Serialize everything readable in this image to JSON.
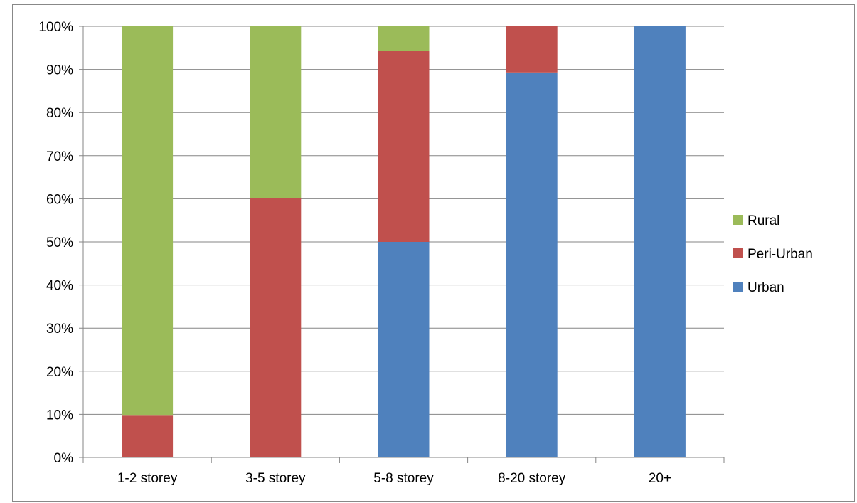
{
  "chart_data": {
    "type": "bar",
    "stacked": true,
    "normalized_percent": true,
    "categories": [
      "1-2 storey",
      "3-5 storey",
      "5-8 storey",
      "8-20 storey",
      "20+"
    ],
    "series": [
      {
        "name": "Urban",
        "color": "#4F81BD",
        "values": [
          0,
          0,
          50,
          89.3,
          100
        ]
      },
      {
        "name": "Peri-Urban",
        "color": "#C0504D",
        "values": [
          9.7,
          60.2,
          44.3,
          10.7,
          0
        ]
      },
      {
        "name": "Rural",
        "color": "#9BBB59",
        "values": [
          90.3,
          39.8,
          5.7,
          0,
          0
        ]
      }
    ],
    "y_ticks": [
      "0%",
      "10%",
      "20%",
      "30%",
      "40%",
      "50%",
      "60%",
      "70%",
      "80%",
      "90%",
      "100%"
    ],
    "ylim": [
      0,
      100
    ],
    "grid": true,
    "legend_position": "right",
    "legend_order": [
      "Rural",
      "Peri-Urban",
      "Urban"
    ],
    "title": "",
    "xlabel": "",
    "ylabel": ""
  }
}
